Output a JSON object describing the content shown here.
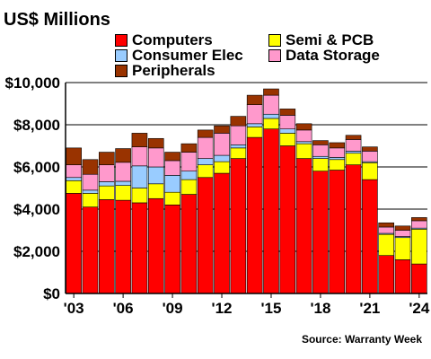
{
  "chart_data": {
    "type": "bar",
    "stacked": true,
    "title": "US$ Millions",
    "source": "Source: Warranty Week",
    "ylim": [
      0,
      10000
    ],
    "grid": true,
    "legend_position": "top",
    "x_tick_labels": [
      "'03",
      "'06",
      "'09",
      "'12",
      "'15",
      "'18",
      "'21",
      "'24"
    ],
    "y_tick_labels": [
      "$0",
      "$2,000",
      "$4,000",
      "$6,000",
      "$8,000",
      "$10,000"
    ],
    "y_ticks": [
      0,
      2000,
      4000,
      6000,
      8000,
      10000
    ],
    "categories": [
      "2003",
      "2004",
      "2005",
      "2006",
      "2007",
      "2008",
      "2009",
      "2010",
      "2011",
      "2012",
      "2013",
      "2014",
      "2015",
      "2016",
      "2017",
      "2018",
      "2019",
      "2020",
      "2021",
      "2022",
      "2023",
      "2024"
    ],
    "series": [
      {
        "name": "Computers",
        "color": "#ff0000",
        "values": [
          4750,
          4100,
          4450,
          4420,
          4300,
          4500,
          4200,
          4700,
          5500,
          5700,
          6400,
          7400,
          7800,
          7000,
          6400,
          5800,
          5850,
          6100,
          5400,
          1800,
          1600,
          1400
        ]
      },
      {
        "name": "Semi & PCB",
        "color": "#ffff00",
        "values": [
          600,
          650,
          650,
          700,
          700,
          700,
          600,
          700,
          600,
          550,
          500,
          500,
          500,
          600,
          700,
          600,
          500,
          550,
          800,
          1000,
          1050,
          1650
        ]
      },
      {
        "name": "Consumer Elec",
        "color": "#99ccff",
        "values": [
          150,
          150,
          200,
          200,
          1050,
          800,
          800,
          400,
          300,
          300,
          150,
          150,
          200,
          200,
          100,
          100,
          100,
          100,
          50,
          50,
          50,
          50
        ]
      },
      {
        "name": "Data Storage",
        "color": "#ff99cc",
        "values": [
          600,
          750,
          800,
          900,
          900,
          900,
          700,
          900,
          1000,
          1050,
          900,
          900,
          900,
          650,
          550,
          550,
          450,
          550,
          500,
          300,
          300,
          350
        ]
      },
      {
        "name": "Peripherals",
        "color": "#993300",
        "values": [
          800,
          700,
          600,
          650,
          650,
          450,
          400,
          400,
          350,
          350,
          450,
          450,
          300,
          300,
          300,
          200,
          250,
          200,
          200,
          200,
          200,
          150
        ]
      }
    ]
  }
}
